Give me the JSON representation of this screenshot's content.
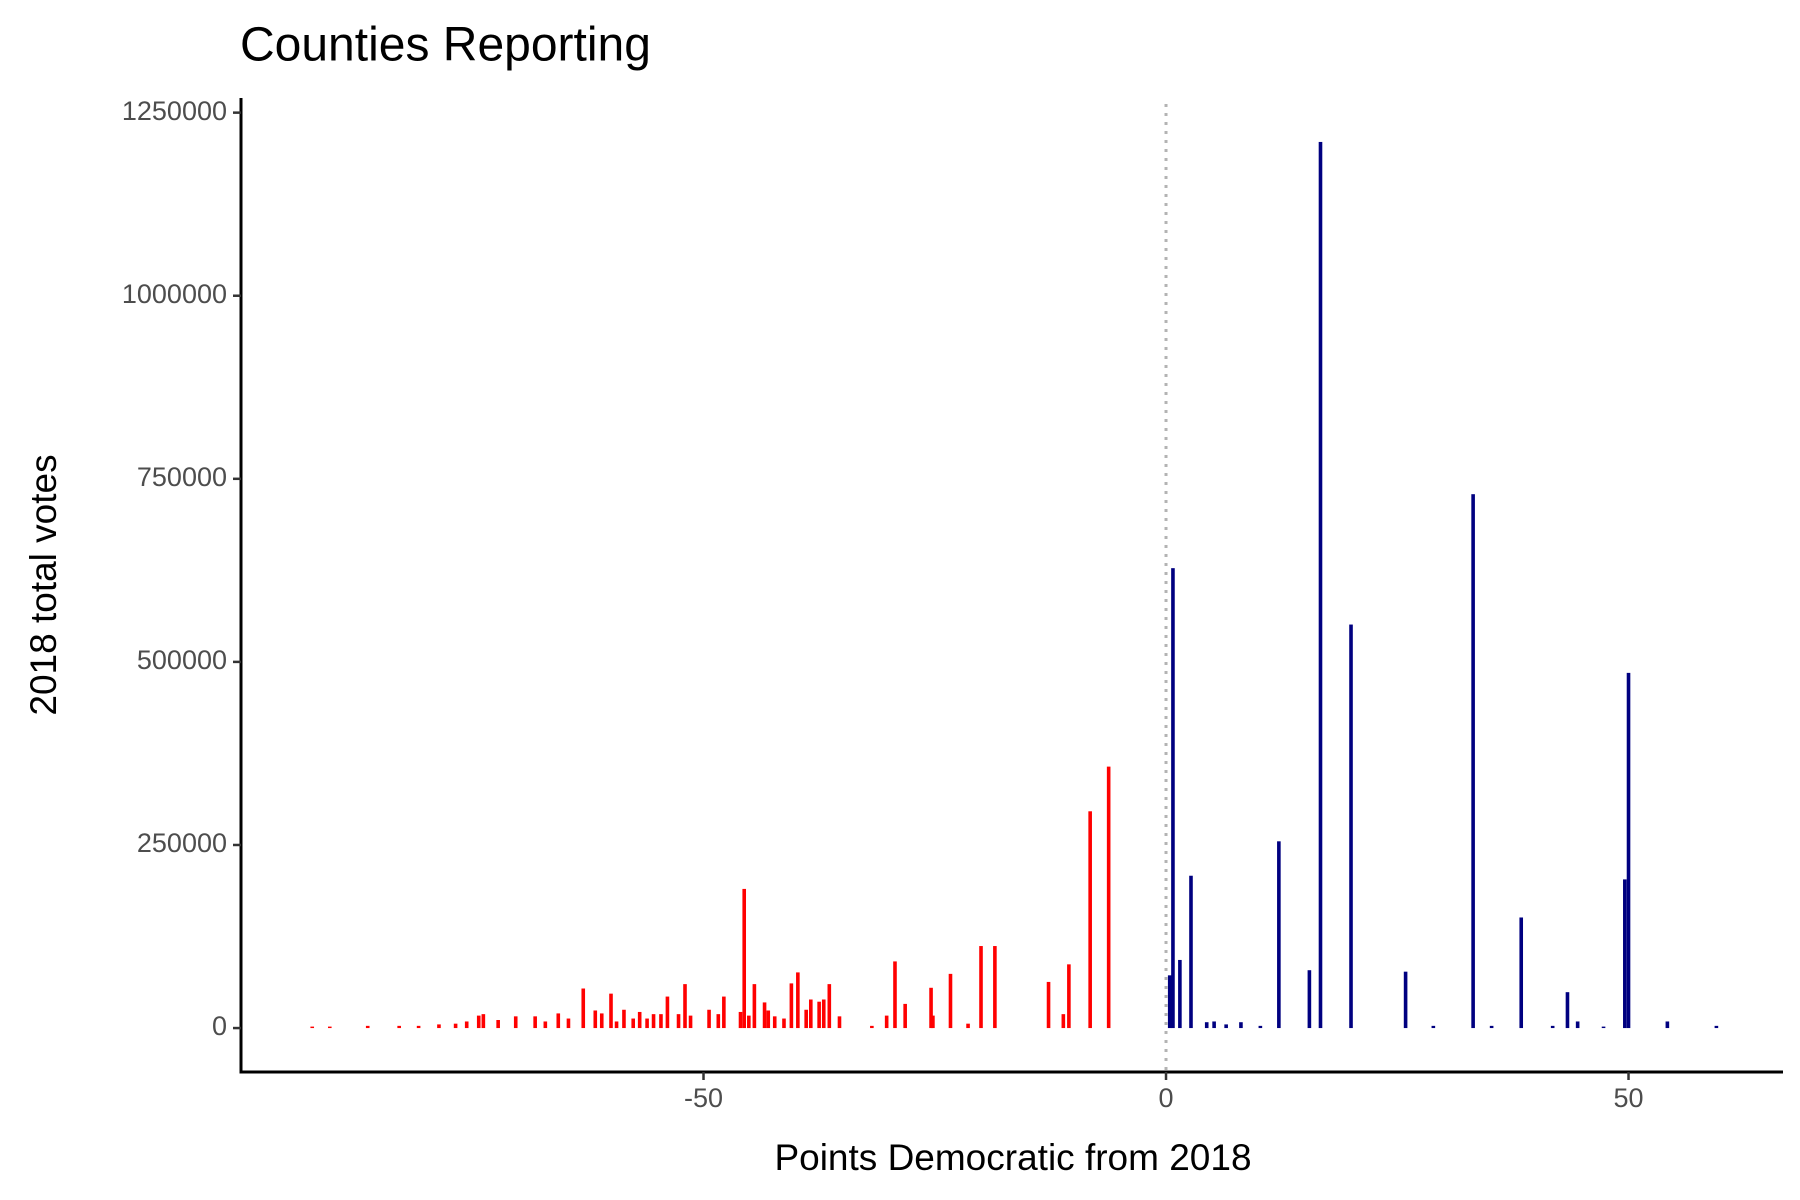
{
  "chart_data": {
    "type": "bar",
    "title": "Counties Reporting",
    "x_label": "Points Democratic from 2018",
    "y_label": "2018 total votes",
    "xlim": [
      -100,
      66.7
    ],
    "ylim": [
      -60000,
      1270000
    ],
    "xticks": [
      -50,
      0,
      50
    ],
    "yticks": [
      0,
      250000,
      500000,
      750000,
      1000000,
      1250000
    ],
    "vline": 0,
    "grid": false,
    "series": [
      {
        "color": "#ff0000",
        "x": [
          -92.3,
          -90.4,
          -86.3,
          -82.9,
          -80.8,
          -78.6,
          -76.8,
          -75.6,
          -74.3,
          -73.8,
          -72.2,
          -70.3,
          -68.2,
          -67.1,
          -65.7,
          -64.6,
          -63,
          -61.7,
          -61,
          -60,
          -59.4,
          -58.6,
          -57.6,
          -56.9,
          -56.1,
          -55.4,
          -54.6,
          -53.9,
          -52.7,
          -52,
          -51.4,
          -49.4,
          -48.4,
          -47.8,
          -46,
          -45.6,
          -45.1,
          -44.5,
          -43.4,
          -43,
          -42.3,
          -41.3,
          -40.5,
          -39.8,
          -38.9,
          -38.4,
          -37.5,
          -37,
          -36.4,
          -35.3,
          -31.8,
          -30.2,
          -29.3,
          -28.2,
          -25.4,
          -25.2,
          -23.3,
          -21.4,
          -20,
          -18.5,
          -12.7,
          -11.1,
          -10.5,
          -8.2,
          -6.2
        ],
        "values": [
          2000,
          2000,
          3000,
          3000,
          3000,
          5000,
          6000,
          9000,
          17000,
          19000,
          11000,
          16000,
          16000,
          9000,
          20000,
          13000,
          54000,
          24000,
          20000,
          47000,
          9000,
          25000,
          13000,
          22000,
          13000,
          19000,
          19000,
          43000,
          19000,
          60000,
          17000,
          25000,
          19000,
          43000,
          22000,
          190000,
          17000,
          60000,
          35000,
          24000,
          16000,
          13000,
          61000,
          76000,
          25000,
          39000,
          36000,
          39000,
          60000,
          16000,
          3000,
          17000,
          91000,
          33000,
          55000,
          17000,
          74000,
          6000,
          112000,
          112000,
          63000,
          19000,
          87000,
          296000,
          357000
        ]
      },
      {
        "color": "#000080",
        "x": [
          0.4,
          0.75,
          1.5,
          2.7,
          4.4,
          5.2,
          6.5,
          8.1,
          10.2,
          12.2,
          15.5,
          16.7,
          20,
          25.9,
          28.9,
          33.2,
          35.2,
          38.4,
          41.8,
          43.4,
          44.5,
          47.3,
          49.6,
          50,
          54.2,
          59.5
        ],
        "values": [
          72000,
          628000,
          93000,
          208000,
          8000,
          9000,
          5000,
          8000,
          3000,
          255000,
          79000,
          1210000,
          551000,
          77000,
          3000,
          729000,
          3000,
          151000,
          3000,
          49000,
          9000,
          2000,
          203000,
          485000,
          9000,
          3000
        ]
      }
    ]
  }
}
